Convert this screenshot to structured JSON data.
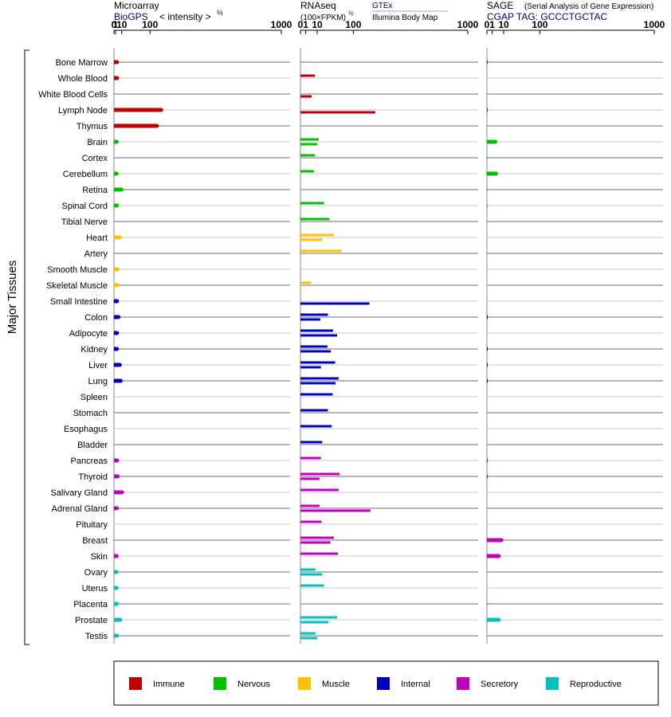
{
  "chart_data": {
    "type": "bar",
    "side_label": "Major Tissues",
    "panels": {
      "microarray": {
        "title": "Microarray",
        "source": "BioGPS",
        "scale_label": "< intensity >",
        "scale_exponent": "⅔",
        "ticks": [
          "0",
          "1",
          "10",
          "100",
          "1000"
        ],
        "tick_values": [
          0,
          1,
          10,
          100,
          1000
        ]
      },
      "rnaseq": {
        "title": "RNAseq",
        "scale_label": "(100×FPKM)",
        "scale_exponent": "½",
        "source_top": "GTEx",
        "source_bottom": "Illumina Body Map",
        "ticks": [
          "0",
          "1",
          "10",
          "100",
          "1000"
        ],
        "tick_values": [
          0,
          1,
          10,
          100,
          1000
        ]
      },
      "sage": {
        "title": "SAGE",
        "subtitle": "(Serial Analysis of Gene Expression)",
        "tag_line": "CGAP TAG: GCCCTGCTAC",
        "ticks": [
          "0",
          "1",
          "10",
          "100",
          "1000"
        ],
        "tick_values": [
          0,
          1,
          10,
          100,
          1000
        ]
      }
    },
    "legend": [
      {
        "name": "Immune",
        "color": "#c00000"
      },
      {
        "name": "Nervous",
        "color": "#00c000"
      },
      {
        "name": "Muscle",
        "color": "#ffc000"
      },
      {
        "name": "Internal",
        "color": "#0000c0"
      },
      {
        "name": "Secretory",
        "color": "#c000c0"
      },
      {
        "name": "Reproductive",
        "color": "#00c0c0"
      }
    ],
    "tissues": [
      {
        "name": "Bone Marrow",
        "group": "Immune",
        "microarray": 2.4,
        "gtex": null,
        "ibm": null,
        "sage": 0.02
      },
      {
        "name": "Whole Blood",
        "group": "Immune",
        "microarray": 2.6,
        "gtex": 7.5,
        "ibm": null,
        "sage": null
      },
      {
        "name": "White Blood Cells",
        "group": "Immune",
        "microarray": null,
        "gtex": null,
        "ibm": 4.5,
        "sage": null
      },
      {
        "name": "Lymph Node",
        "group": "Immune",
        "microarray": 150,
        "gtex": null,
        "ibm": 200,
        "sage": 0.02
      },
      {
        "name": "Thymus",
        "group": "Immune",
        "microarray": 130,
        "gtex": null,
        "ibm": null,
        "sage": null
      },
      {
        "name": "Brain",
        "group": "Nervous",
        "microarray": 2.1,
        "gtex": 12,
        "ibm": 10,
        "sage": 2.5
      },
      {
        "name": "Cortex",
        "group": "Nervous",
        "microarray": null,
        "gtex": 7.5,
        "ibm": null,
        "sage": 0.01
      },
      {
        "name": "Cerebellum",
        "group": "Nervous",
        "microarray": 2.0,
        "gtex": 6.5,
        "ibm": null,
        "sage": 3.0
      },
      {
        "name": "Retina",
        "group": "Nervous",
        "microarray": 9.5,
        "gtex": null,
        "ibm": null,
        "sage": 0.01
      },
      {
        "name": "Spinal Cord",
        "group": "Nervous",
        "microarray": 2.3,
        "gtex": 20,
        "ibm": null,
        "sage": 0.01
      },
      {
        "name": "Tibial Nerve",
        "group": "Nervous",
        "microarray": null,
        "gtex": 30,
        "ibm": null,
        "sage": null
      },
      {
        "name": "Heart",
        "group": "Muscle",
        "microarray": 6.0,
        "gtex": 40,
        "ibm": 17,
        "sage": 0.005
      },
      {
        "name": "Artery",
        "group": "Muscle",
        "microarray": null,
        "gtex": 60,
        "ibm": null,
        "sage": null
      },
      {
        "name": "Smooth Muscle",
        "group": "Muscle",
        "microarray": 3.0,
        "gtex": null,
        "ibm": null,
        "sage": null
      },
      {
        "name": "Skeletal Muscle",
        "group": "Muscle",
        "microarray": 3.5,
        "gtex": 4.0,
        "ibm": 0.01,
        "sage": 0.005
      },
      {
        "name": "Small Intestine",
        "group": "Internal",
        "microarray": 2.5,
        "gtex": null,
        "ibm": 170,
        "sage": null
      },
      {
        "name": "Colon",
        "group": "Internal",
        "microarray": 4.5,
        "gtex": 27,
        "ibm": 14,
        "sage": 0.02
      },
      {
        "name": "Adipocyte",
        "group": "Internal",
        "microarray": 2.5,
        "gtex": 38,
        "ibm": 48,
        "sage": null
      },
      {
        "name": "Kidney",
        "group": "Internal",
        "microarray": 2.3,
        "gtex": 26,
        "ibm": 33,
        "sage": 0.02
      },
      {
        "name": "Liver",
        "group": "Internal",
        "microarray": 6.5,
        "gtex": 43,
        "ibm": 15,
        "sage": 0.02
      },
      {
        "name": "Lung",
        "group": "Internal",
        "microarray": 8.0,
        "gtex": 52,
        "ibm": 44,
        "sage": 0.02
      },
      {
        "name": "Spleen",
        "group": "Internal",
        "microarray": null,
        "gtex": 37,
        "ibm": null,
        "sage": null
      },
      {
        "name": "Stomach",
        "group": "Internal",
        "microarray": null,
        "gtex": 27,
        "ibm": null,
        "sage": null
      },
      {
        "name": "Esophagus",
        "group": "Internal",
        "microarray": null,
        "gtex": 35,
        "ibm": null,
        "sage": null
      },
      {
        "name": "Bladder",
        "group": "Internal",
        "microarray": null,
        "gtex": 17,
        "ibm": null,
        "sage": null
      },
      {
        "name": "Pancreas",
        "group": "Secretory",
        "microarray": 2.6,
        "gtex": 15,
        "ibm": null,
        "sage": 0.02
      },
      {
        "name": "Thyroid",
        "group": "Secretory",
        "microarray": 3.3,
        "gtex": 55,
        "ibm": 13,
        "sage": 0.02
      },
      {
        "name": "Salivary Gland",
        "group": "Secretory",
        "microarray": 10.5,
        "gtex": 52,
        "ibm": null,
        "sage": null
      },
      {
        "name": "Adrenal Gland",
        "group": "Secretory",
        "microarray": 2.2,
        "gtex": 13,
        "ibm": 175,
        "sage": null
      },
      {
        "name": "Pituitary",
        "group": "Secretory",
        "microarray": null,
        "gtex": 16,
        "ibm": null,
        "sage": null
      },
      {
        "name": "Breast",
        "group": "Secretory",
        "microarray": null,
        "gtex": 40,
        "ibm": 32,
        "sage": 7.5
      },
      {
        "name": "Skin",
        "group": "Secretory",
        "microarray": 2.0,
        "gtex": 50,
        "ibm": null,
        "sage": 5.0
      },
      {
        "name": "Ovary",
        "group": "Reproductive",
        "microarray": 1.8,
        "gtex": 8.0,
        "ibm": 17,
        "sage": null
      },
      {
        "name": "Uterus",
        "group": "Reproductive",
        "microarray": 2.0,
        "gtex": 20,
        "ibm": null,
        "sage": null
      },
      {
        "name": "Placenta",
        "group": "Reproductive",
        "microarray": 2.2,
        "gtex": null,
        "ibm": null,
        "sage": 0.01
      },
      {
        "name": "Prostate",
        "group": "Reproductive",
        "microarray": 7.0,
        "gtex": 48,
        "ibm": 28,
        "sage": 5.0
      },
      {
        "name": "Testis",
        "group": "Reproductive",
        "microarray": 2.3,
        "gtex": 8.0,
        "ibm": 10,
        "sage": null
      }
    ]
  }
}
